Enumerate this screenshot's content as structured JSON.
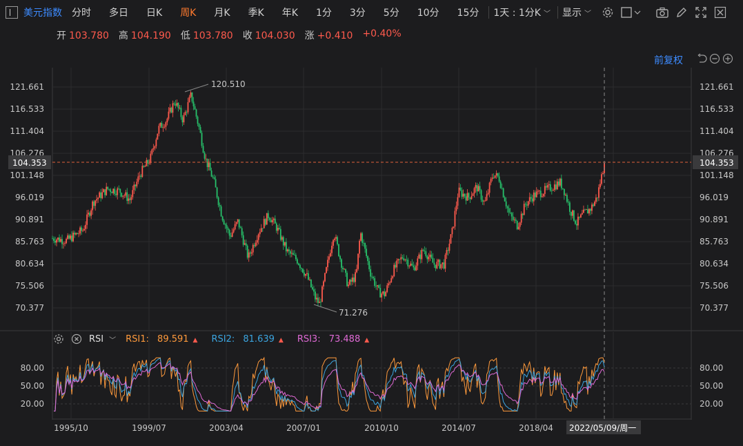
{
  "toolbar": {
    "symbol": "美元指数",
    "timeframes": [
      "分时",
      "多日",
      "日K",
      "周K",
      "月K",
      "季K",
      "年K",
      "1分",
      "3分",
      "5分",
      "10分",
      "15分"
    ],
    "active_timeframe": "周K",
    "interval_dropdown": "1天 : 1分K",
    "display_dropdown": "显示"
  },
  "ohlc": {
    "open_label": "开",
    "open": "103.780",
    "high_label": "高",
    "high": "104.190",
    "low_label": "低",
    "low": "103.780",
    "close_label": "收",
    "close": "104.030",
    "change_label": "涨",
    "change": "+0.410",
    "change_pct": "+0.40%"
  },
  "adjust_label": "前复权",
  "price_axis": {
    "ticks": [
      "121.661",
      "116.533",
      "111.404",
      "106.276",
      "101.148",
      "96.019",
      "90.891",
      "85.763",
      "80.634",
      "75.506",
      "70.377"
    ],
    "current_price": "104.353"
  },
  "annotations": {
    "high_marker": "120.510",
    "low_marker": "71.276"
  },
  "rsi": {
    "name": "RSI",
    "rsi1_label": "RSI1:",
    "rsi1": "89.591",
    "rsi2_label": "RSI2:",
    "rsi2": "81.639",
    "rsi3_label": "RSI3:",
    "rsi3": "73.488",
    "axis_ticks": [
      "80.00",
      "50.00",
      "20.00"
    ]
  },
  "time_axis": {
    "ticks": [
      "1995/10",
      "1999/07",
      "2003/04",
      "2007/01",
      "2010/10",
      "2014/07",
      "2018/04"
    ],
    "crosshair_label": "2022/05/09/周一"
  },
  "colors": {
    "up": "#ff5a4d",
    "down": "#27c26b",
    "accent": "#3d8bff",
    "active": "#ff7a2e",
    "rsi1": "#ff9a3c",
    "rsi2": "#3ba5e0",
    "rsi3": "#e06ad6"
  },
  "chart_data": {
    "type": "candlestick",
    "price_range": [
      70.377,
      121.661
    ],
    "trend": [
      [
        1995.4,
        86.5
      ],
      [
        1996.0,
        86.0
      ],
      [
        1996.8,
        88.5
      ],
      [
        1997.3,
        95.0
      ],
      [
        1998.0,
        98.0
      ],
      [
        1998.6,
        97.5
      ],
      [
        1999.1,
        95.5
      ],
      [
        1999.6,
        101.5
      ],
      [
        2000.1,
        105.0
      ],
      [
        2000.5,
        112.0
      ],
      [
        2000.9,
        114.0
      ],
      [
        2001.3,
        118.5
      ],
      [
        2001.7,
        114.0
      ],
      [
        2002.1,
        119.8
      ],
      [
        2002.5,
        112.0
      ],
      [
        2002.8,
        105.0
      ],
      [
        2003.2,
        100.0
      ],
      [
        2003.6,
        92.0
      ],
      [
        2004.0,
        87.0
      ],
      [
        2004.4,
        90.5
      ],
      [
        2004.9,
        82.0
      ],
      [
        2005.4,
        88.0
      ],
      [
        2005.9,
        92.0
      ],
      [
        2006.3,
        89.0
      ],
      [
        2006.8,
        83.5
      ],
      [
        2007.3,
        81.5
      ],
      [
        2007.8,
        77.5
      ],
      [
        2008.2,
        72.5
      ],
      [
        2008.4,
        71.3
      ],
      [
        2008.7,
        78.5
      ],
      [
        2009.1,
        88.0
      ],
      [
        2009.4,
        82.0
      ],
      [
        2009.8,
        75.5
      ],
      [
        2010.2,
        78.0
      ],
      [
        2010.4,
        88.0
      ],
      [
        2010.9,
        78.5
      ],
      [
        2011.3,
        74.0
      ],
      [
        2011.6,
        73.5
      ],
      [
        2012.0,
        79.0
      ],
      [
        2012.5,
        82.5
      ],
      [
        2013.0,
        79.5
      ],
      [
        2013.5,
        84.0
      ],
      [
        2014.0,
        80.5
      ],
      [
        2014.5,
        80.5
      ],
      [
        2014.9,
        88.0
      ],
      [
        2015.2,
        97.5
      ],
      [
        2015.7,
        96.0
      ],
      [
        2016.1,
        98.5
      ],
      [
        2016.5,
        94.5
      ],
      [
        2016.9,
        101.5
      ],
      [
        2017.2,
        100.5
      ],
      [
        2017.7,
        92.0
      ],
      [
        2018.1,
        89.5
      ],
      [
        2018.5,
        94.5
      ],
      [
        2018.9,
        96.5
      ],
      [
        2019.4,
        97.5
      ],
      [
        2019.8,
        98.5
      ],
      [
        2020.2,
        99.5
      ],
      [
        2020.4,
        97.5
      ],
      [
        2020.7,
        93.0
      ],
      [
        2021.0,
        90.0
      ],
      [
        2021.3,
        92.0
      ],
      [
        2021.7,
        93.5
      ],
      [
        2022.0,
        96.0
      ],
      [
        2022.36,
        104.0
      ]
    ]
  }
}
